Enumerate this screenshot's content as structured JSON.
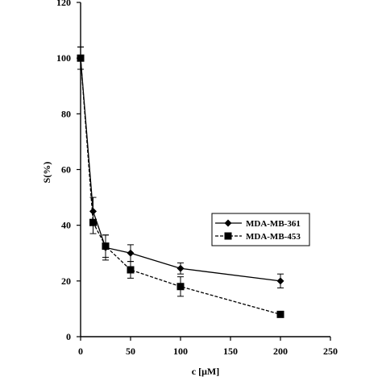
{
  "chart_data": {
    "type": "line",
    "title": "",
    "xlabel": "c [μM]",
    "ylabel": "S(%)",
    "xlim": [
      0,
      250
    ],
    "ylim": [
      0,
      120
    ],
    "x_ticks": [
      "0",
      "50",
      "100",
      "150",
      "200",
      "250"
    ],
    "y_ticks": [
      "0",
      "20",
      "40",
      "60",
      "80",
      "100",
      "120"
    ],
    "grid": false,
    "legend_position": "right-middle",
    "series": [
      {
        "name": "MDA-MB-361",
        "marker": "diamond",
        "line_style": "solid",
        "x": [
          0,
          12.5,
          25,
          50,
          100,
          200
        ],
        "y": [
          100,
          45,
          32,
          30,
          24.5,
          20
        ],
        "error": [
          4,
          5,
          4.5,
          3,
          2,
          2.5
        ]
      },
      {
        "name": "MDA-MB-453",
        "marker": "square",
        "line_style": "dashed",
        "x": [
          0,
          12.5,
          25,
          50,
          100,
          200
        ],
        "y": [
          100,
          41,
          32.5,
          24,
          18,
          8
        ],
        "error": [
          4,
          4,
          4,
          3,
          3.5,
          0
        ]
      }
    ]
  }
}
